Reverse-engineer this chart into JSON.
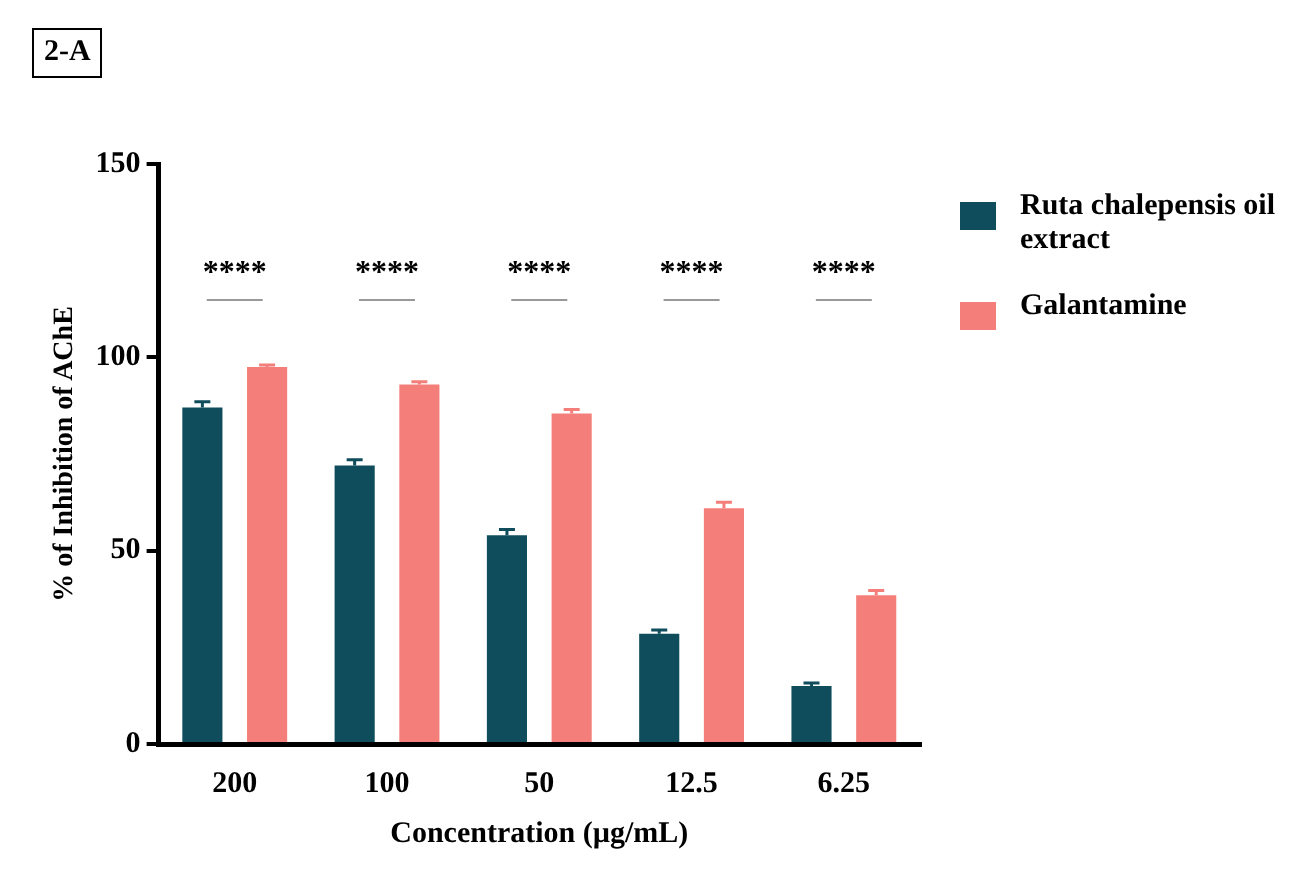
{
  "chart_data": {
    "type": "bar",
    "title": "2-A",
    "xlabel": "Concentration (µg/mL)",
    "ylabel": "% of Inhibition of AChE",
    "categories": [
      "200",
      "100",
      "50",
      "12.5",
      "6.25"
    ],
    "series": [
      {
        "name": "Ruta chalepensis oil extract",
        "color": "#0f4c5c",
        "values": [
          87,
          72,
          54,
          28.5,
          15
        ],
        "errors": [
          1.5,
          1.5,
          1.5,
          1,
          0.8
        ]
      },
      {
        "name": "Galantamine",
        "color": "#f47f7a",
        "values": [
          97.5,
          93,
          85.5,
          61,
          38.5
        ],
        "errors": [
          0.5,
          0.7,
          1,
          1.5,
          1.2
        ]
      }
    ],
    "ylim": [
      0,
      150
    ],
    "yticks": [
      0,
      50,
      100,
      150
    ],
    "grid": false,
    "legend": "right",
    "annotations": [
      "****",
      "****",
      "****",
      "****",
      "****"
    ]
  }
}
